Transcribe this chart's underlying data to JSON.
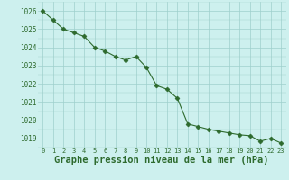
{
  "x": [
    0,
    1,
    2,
    3,
    4,
    5,
    6,
    7,
    8,
    9,
    10,
    11,
    12,
    13,
    14,
    15,
    16,
    17,
    18,
    19,
    20,
    21,
    22,
    23
  ],
  "y": [
    1026.0,
    1025.5,
    1025.0,
    1024.8,
    1024.6,
    1024.0,
    1023.8,
    1023.5,
    1023.3,
    1023.5,
    1022.9,
    1021.9,
    1021.7,
    1021.2,
    1019.8,
    1019.65,
    1019.5,
    1019.4,
    1019.3,
    1019.2,
    1019.15,
    1018.85,
    1019.0,
    1018.75
  ],
  "line_color": "#2d6a2d",
  "marker": "D",
  "marker_size": 2.5,
  "background_color": "#cdf0ee",
  "grid_color": "#9ecfcc",
  "xlabel": "Graphe pression niveau de la mer (hPa)",
  "xlabel_fontsize": 7.5,
  "ylabel_ticks": [
    1019,
    1020,
    1021,
    1022,
    1023,
    1024,
    1025,
    1026
  ],
  "xtick_labels": [
    "0",
    "1",
    "2",
    "3",
    "4",
    "5",
    "6",
    "7",
    "8",
    "9",
    "10",
    "11",
    "12",
    "13",
    "14",
    "15",
    "16",
    "17",
    "18",
    "19",
    "20",
    "21",
    "22",
    "23"
  ],
  "ylim": [
    1018.5,
    1026.5
  ],
  "xlim": [
    -0.5,
    23.5
  ],
  "tick_color": "#2d6a2d",
  "label_color": "#2d6a2d"
}
